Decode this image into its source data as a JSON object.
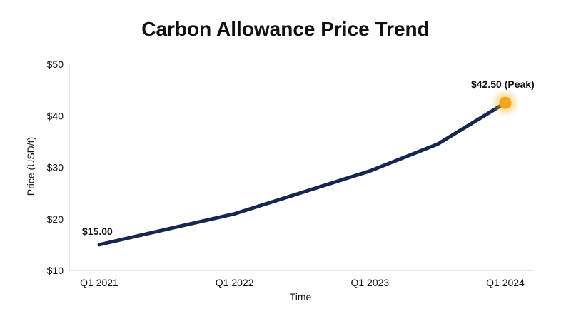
{
  "chart_data": {
    "type": "line",
    "title": "Carbon Allowance Price Trend",
    "xlabel": "Time",
    "ylabel": "Price (USD/t)",
    "x_tick_labels": [
      "Q1 2021",
      "Q1 2022",
      "Q1 2023",
      "Q1 2024"
    ],
    "y_tick_labels": [
      "$10",
      "$20",
      "$30",
      "$40",
      "$50"
    ],
    "y_ticks": [
      10,
      20,
      30,
      40,
      50
    ],
    "ylim": [
      10,
      50
    ],
    "xlim": [
      2021.0,
      2024.0
    ],
    "grid": false,
    "series": [
      {
        "color": "#17264f",
        "x": [
          2021.0,
          2022.0,
          2023.0,
          2023.5,
          2024.0
        ],
        "values": [
          15.0,
          21.0,
          29.3,
          34.5,
          42.5
        ]
      }
    ],
    "annotations": [
      {
        "text": "$15.00",
        "x": 2021.0,
        "y": 15.0
      },
      {
        "text": "$42.50 (Peak)",
        "x": 2024.0,
        "y": 42.5
      }
    ],
    "peak_marker": {
      "x": 2024.0,
      "y": 42.5,
      "color": "#f3a51c"
    },
    "axis_color": "#cfcfcf"
  }
}
